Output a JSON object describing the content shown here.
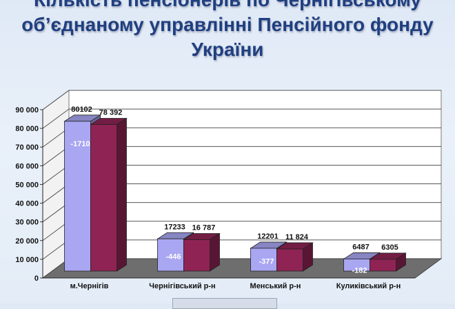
{
  "title": {
    "line1": "Кількість пенсіонерів по Чернігівському",
    "line2": "об’єднаному управлінні Пенсійного фонду",
    "line3": "України"
  },
  "colors": {
    "series1": "#a9a6f2",
    "series2": "#8f2454",
    "floor": "#6e6e6e",
    "title": "#1f3f80"
  },
  "chart_data": {
    "type": "bar",
    "categories": [
      "м.Чернігів",
      "Чернігівський р-н",
      "Менський р-н",
      "Куликівський р-н"
    ],
    "series": [
      {
        "values": [
          80102,
          17233,
          12201,
          6487
        ],
        "labels": [
          "80102",
          "17233",
          "12201",
          "6487"
        ]
      },
      {
        "values": [
          78392,
          16787,
          11824,
          6305
        ],
        "labels": [
          "78 392",
          "16 787",
          "11 824",
          "6305"
        ]
      }
    ],
    "differences": [
      "-1710",
      "-446",
      "-377",
      "-182"
    ],
    "yticks": [
      "0",
      "10 000",
      "20 000",
      "30 000",
      "40 000",
      "50 000",
      "60 000",
      "70 000",
      "80 000",
      "90 000"
    ],
    "ylim": [
      0,
      90000
    ],
    "grid": true,
    "three_d": true
  }
}
